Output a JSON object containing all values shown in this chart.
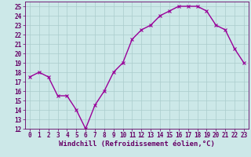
{
  "x": [
    0,
    1,
    2,
    3,
    4,
    5,
    6,
    7,
    8,
    9,
    10,
    11,
    12,
    13,
    14,
    15,
    16,
    17,
    18,
    19,
    20,
    21,
    22,
    23
  ],
  "y": [
    17.5,
    18,
    17.5,
    15.5,
    15.5,
    14,
    12,
    14.5,
    16,
    18,
    19,
    21.5,
    22.5,
    23,
    24,
    24.5,
    25,
    25,
    25,
    24.5,
    23,
    22.5,
    20.5,
    19
  ],
  "line_color": "#990099",
  "marker": "x",
  "marker_size": 3,
  "bg_color": "#cce8e8",
  "grid_color": "#aacccc",
  "xlabel": "Windchill (Refroidissement éolien,°C)",
  "xlim": [
    -0.5,
    23.5
  ],
  "ylim": [
    12,
    25.5
  ],
  "yticks": [
    12,
    13,
    14,
    15,
    16,
    17,
    18,
    19,
    20,
    21,
    22,
    23,
    24,
    25
  ],
  "xticks": [
    0,
    1,
    2,
    3,
    4,
    5,
    6,
    7,
    8,
    9,
    10,
    11,
    12,
    13,
    14,
    15,
    16,
    17,
    18,
    19,
    20,
    21,
    22,
    23
  ],
  "tick_color": "#660066",
  "tick_fontsize": 5.5,
  "xlabel_fontsize": 6.5,
  "linewidth": 1.0,
  "markeredgewidth": 0.8
}
